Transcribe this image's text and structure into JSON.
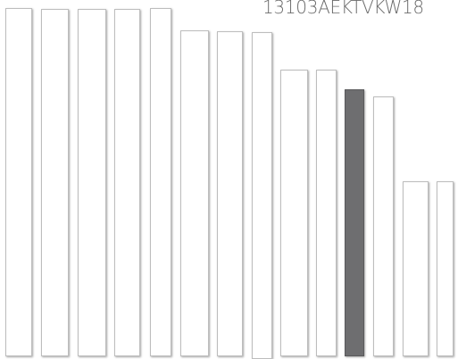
{
  "header": {
    "code_text": "13103AEKTVKW18"
  },
  "colors": {
    "panel_fill": "#ffffff",
    "panel_border": "#bdbdbd",
    "selected_fill": "#6e6e70"
  },
  "panels": [
    {
      "id": "panel-1",
      "selected": false
    },
    {
      "id": "panel-2",
      "selected": false
    },
    {
      "id": "panel-3",
      "selected": false
    },
    {
      "id": "panel-4",
      "selected": false
    },
    {
      "id": "panel-5",
      "selected": false
    },
    {
      "id": "panel-6",
      "selected": false
    },
    {
      "id": "panel-7",
      "selected": false
    },
    {
      "id": "panel-8",
      "selected": false
    },
    {
      "id": "panel-9",
      "selected": false
    },
    {
      "id": "panel-10",
      "selected": false
    },
    {
      "id": "panel-11",
      "selected": true
    },
    {
      "id": "panel-12",
      "selected": false
    },
    {
      "id": "panel-13",
      "selected": false
    },
    {
      "id": "panel-14",
      "selected": false
    }
  ]
}
